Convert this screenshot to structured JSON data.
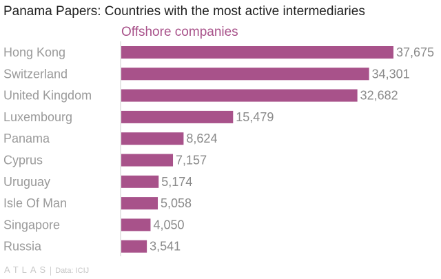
{
  "chart_data": {
    "type": "bar",
    "orientation": "horizontal",
    "title": "Panama Papers: Countries with the most active intermediaries",
    "series": [
      {
        "name": "Offshore companies",
        "values": [
          37675,
          34301,
          32682,
          15479,
          8624,
          7157,
          5174,
          5058,
          4050,
          3541
        ],
        "value_labels": [
          "37,675",
          "34,301",
          "32,682",
          "15,479",
          "8,624",
          "7,157",
          "5,174",
          "5,058",
          "4,050",
          "3,541"
        ]
      }
    ],
    "categories": [
      "Hong Kong",
      "Switzerland",
      "United Kingdom",
      "Luxembourg",
      "Panama",
      "Cyprus",
      "Uruguay",
      "Isle Of Man",
      "Singapore",
      "Russia"
    ],
    "xlabel": "",
    "ylabel": "",
    "xlim": [
      0,
      37675
    ],
    "grid": false,
    "legend": "none",
    "bar_color": "#a8528a",
    "series_label_color": "#a8528a"
  },
  "footer": {
    "brand": "ATLAS",
    "source": "Data: ICIJ"
  }
}
